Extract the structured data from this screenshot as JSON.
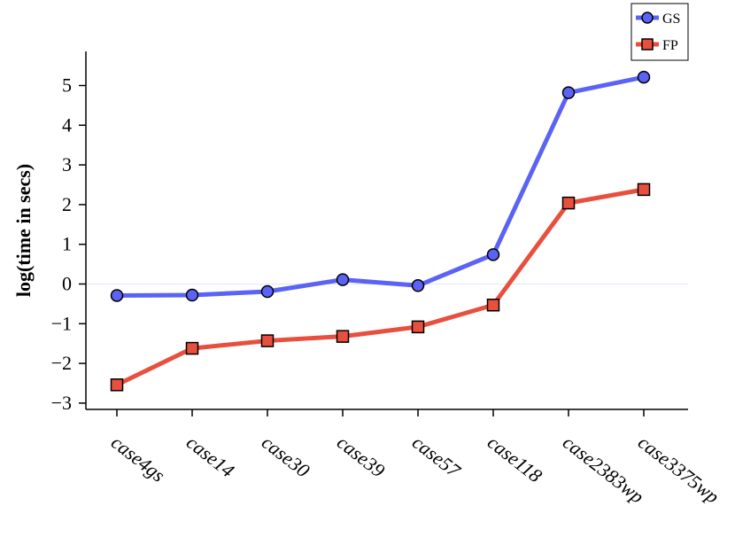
{
  "chart_data": {
    "type": "line",
    "title": "",
    "xlabel": "",
    "ylabel": "log(time in secs)",
    "categories": [
      "case4gs",
      "case14",
      "case30",
      "case39",
      "case57",
      "case118",
      "case2383wp",
      "case3375wp"
    ],
    "yticks": [
      "5",
      "4",
      "3",
      "2",
      "1",
      "0",
      "−1",
      "−2",
      "−3"
    ],
    "ytick_values": [
      5,
      4,
      3,
      2,
      1,
      0,
      -1,
      -2,
      -3
    ],
    "ylim": [
      -3.2,
      5.8
    ],
    "zero_line": true,
    "legend_position": "top-right",
    "series": [
      {
        "name": "GS",
        "color": "#5b63f5",
        "marker": "circle",
        "values": [
          -0.29,
          -0.28,
          -0.19,
          0.11,
          -0.04,
          0.74,
          4.82,
          5.21
        ]
      },
      {
        "name": "FP",
        "color": "#e8503e",
        "marker": "square",
        "values": [
          -2.54,
          -1.62,
          -1.43,
          -1.32,
          -1.08,
          -0.53,
          2.04,
          2.38
        ]
      }
    ]
  }
}
